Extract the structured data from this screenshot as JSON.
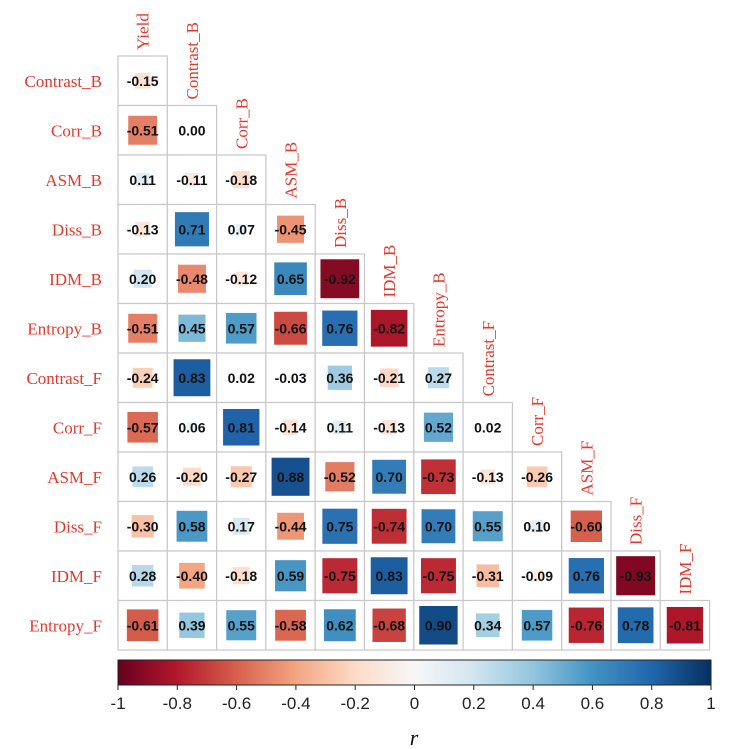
{
  "chart_data": {
    "type": "heatmap",
    "subtype": "correlation-matrix-lower-triangle",
    "variables": [
      "Yield",
      "Contrast_B",
      "Corr_B",
      "ASM_B",
      "Diss_B",
      "IDM_B",
      "Entropy_B",
      "Contrast_F",
      "Corr_F",
      "ASM_F",
      "Diss_F",
      "IDM_F",
      "Entropy_F"
    ],
    "row_labels": [
      "Contrast_B",
      "Corr_B",
      "ASM_B",
      "Diss_B",
      "IDM_B",
      "Entropy_B",
      "Contrast_F",
      "Corr_F",
      "ASM_F",
      "Diss_F",
      "IDM_F",
      "Entropy_F"
    ],
    "col_labels": [
      "Yield",
      "Contrast_B",
      "Corr_B",
      "ASM_B",
      "Diss_B",
      "IDM_B",
      "Entropy_B",
      "Contrast_F",
      "Corr_F",
      "ASM_F",
      "Diss_F",
      "IDM_F"
    ],
    "values": [
      [
        "-0.15"
      ],
      [
        "-0.51",
        "0.00"
      ],
      [
        "0.11",
        "-0.11",
        "-0.18"
      ],
      [
        "-0.13",
        "0.71",
        "0.07",
        "-0.45"
      ],
      [
        "0.20",
        "-0.48",
        "-0.12",
        "0.65",
        "-0.92"
      ],
      [
        "-0.51",
        "0.45",
        "0.57",
        "-0.66",
        "0.76",
        "-0.82"
      ],
      [
        "-0.24",
        "0.83",
        "0.02",
        "-0.03",
        "0.36",
        "-0.21",
        "0.27"
      ],
      [
        "-0.57",
        "0.06",
        "0.81",
        "-0.14",
        "0.11",
        "-0.13",
        "0.52",
        "0.02"
      ],
      [
        "0.26",
        "-0.20",
        "-0.27",
        "0.88",
        "-0.52",
        "0.70",
        "-0.73",
        "-0.13",
        "-0.26"
      ],
      [
        "-0.30",
        "0.58",
        "0.17",
        "-0.44",
        "0.75",
        "-0.74",
        "0.70",
        "0.55",
        "0.10",
        "-0.60"
      ],
      [
        "0.28",
        "-0.40",
        "-0.18",
        "0.59",
        "-0.75",
        "0.83",
        "-0.75",
        "-0.31",
        "-0.09",
        "0.76",
        "-0.93"
      ],
      [
        "-0.61",
        "0.39",
        "0.55",
        "-0.58",
        "0.62",
        "-0.68",
        "0.90",
        "0.34",
        "0.57",
        "-0.76",
        "0.78",
        "-0.81"
      ]
    ],
    "colorbar": {
      "ticks": [
        "-1",
        "-0.8",
        "-0.6",
        "-0.4",
        "-0.2",
        "0",
        "0.2",
        "0.4",
        "0.6",
        "0.8",
        "1"
      ],
      "range": [
        -1,
        1
      ],
      "label": "r"
    },
    "colors": {
      "strong_negative": "#67001f",
      "negative": "#d6604d",
      "weak_negative": "#fddbc7",
      "zero": "#f7f7f7",
      "weak_positive": "#d1e5f0",
      "positive": "#4393c3",
      "strong_positive": "#053061",
      "label_color": "#e03a2f",
      "grid_color": "#c8c8c8"
    }
  }
}
